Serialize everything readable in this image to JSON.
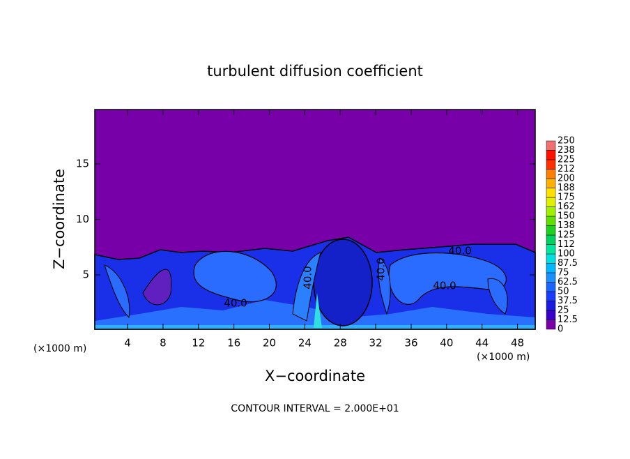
{
  "chart_data": {
    "type": "contour",
    "title": "turbulent diffusion coefficient",
    "x_label": "X−coordinate",
    "y_label": "Z−coordinate",
    "x_unit": "(×1000 m)",
    "x_unit_right": "(×1000 m)",
    "footnote": "CONTOUR INTERVAL = 2.000E+01",
    "xlim": [
      0.3,
      50
    ],
    "xticks": [
      4,
      8,
      12,
      16,
      20,
      24,
      28,
      32,
      36,
      40,
      44,
      48
    ],
    "ylim": [
      0.1,
      19.9
    ],
    "yticks": [
      5,
      10,
      15
    ],
    "annotations": [
      "40.0",
      "40.0",
      "40.0",
      "40.0",
      "40.0"
    ],
    "colorbar": {
      "levels": [
        0,
        12.5,
        25,
        37.5,
        50,
        62.5,
        75,
        87.5,
        100,
        112,
        125,
        138,
        150,
        162,
        175,
        188,
        200,
        212,
        225,
        238,
        250
      ],
      "colors": [
        "#7a00a8",
        "#3a00c8",
        "#1a1ae0",
        "#1a3cff",
        "#1a64ff",
        "#1a90ff",
        "#00b8ff",
        "#00e0e0",
        "#00e8a0",
        "#00d060",
        "#20d020",
        "#60e000",
        "#a0f000",
        "#e0f000",
        "#ffe000",
        "#ffb000",
        "#ff8000",
        "#ff3000",
        "#ff1000",
        "#f07070"
      ]
    }
  }
}
